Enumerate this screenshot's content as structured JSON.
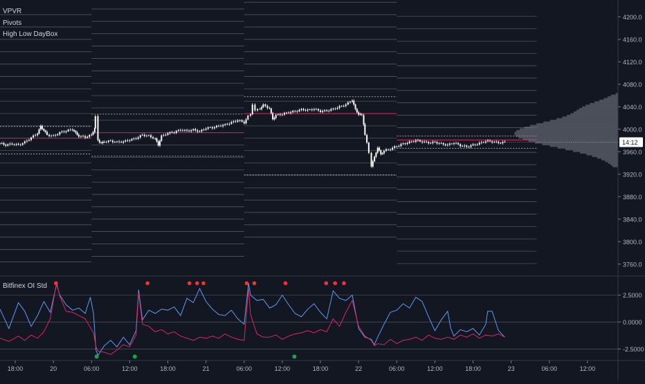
{
  "legend": {
    "vpvr": "VPVR",
    "pivots": "Pivots",
    "daybox": "High Low DayBox",
    "oi_pane": "Bitfinex OI Std"
  },
  "price_badge": "14:12",
  "colors": {
    "background": "#131722",
    "candle": "#ffffff",
    "pivot_line": "#5d606b",
    "day_box": "#a3a6af",
    "poc_line": "#e0245e",
    "volume_profile": "#787b86",
    "oi_blue": "#5b9cf6",
    "oi_red": "#e0245e",
    "marker_red": "#ff2d2d",
    "marker_green": "#14a83e"
  },
  "chart_data": [
    {
      "type": "candlestick",
      "pane": "price",
      "ylim": [
        3740,
        4230
      ],
      "y_ticks": [
        "4200.0",
        "4160.0",
        "4120.0",
        "4080.0",
        "4040.0",
        "4000.0",
        "3960.0",
        "3920.0",
        "3880.0",
        "3840.0",
        "3800.0",
        "3760.0"
      ],
      "y_tick_values": [
        4200,
        4160,
        4120,
        4080,
        4040,
        4000,
        3960,
        3920,
        3880,
        3840,
        3800,
        3760
      ],
      "x_ticks": [
        "18:00",
        "20",
        "06:00",
        "12:00",
        "18:00",
        "21",
        "06:00",
        "12:00",
        "18:00",
        "22",
        "06:00",
        "12:00",
        "18:00",
        "23",
        "06:00",
        "12:00"
      ],
      "x_tick_hours": [
        18,
        24,
        30,
        36,
        42,
        48,
        54,
        60,
        66,
        72,
        78,
        84,
        90,
        96,
        102,
        108
      ],
      "x_range_hours": [
        15.6,
        112.8
      ],
      "last_price": 3977,
      "price_path": [
        [
          15.6,
          3975
        ],
        [
          16.5,
          3972
        ],
        [
          17.5,
          3974
        ],
        [
          18.5,
          3972
        ],
        [
          19.5,
          3977
        ],
        [
          20.5,
          3985
        ],
        [
          21.5,
          3993
        ],
        [
          22,
          4005
        ],
        [
          22.5,
          3998
        ],
        [
          23,
          3990
        ],
        [
          24,
          3988
        ],
        [
          25,
          3994
        ],
        [
          26,
          3997
        ],
        [
          27,
          4000
        ],
        [
          27.5,
          3993
        ],
        [
          28,
          3988
        ],
        [
          29,
          3986
        ],
        [
          30,
          3990
        ],
        [
          30.5,
          4002
        ],
        [
          30.6,
          4022
        ],
        [
          31,
          3981
        ],
        [
          31.5,
          3975
        ],
        [
          32,
          3978
        ],
        [
          33,
          3979
        ],
        [
          34,
          3977
        ],
        [
          35,
          3978
        ],
        [
          36,
          3981
        ],
        [
          37,
          3984
        ],
        [
          38,
          3990
        ],
        [
          39,
          3988
        ],
        [
          40,
          3983
        ],
        [
          40.5,
          3972
        ],
        [
          41,
          3988
        ],
        [
          42,
          3993
        ],
        [
          43,
          3995
        ],
        [
          44,
          3999
        ],
        [
          45,
          3997
        ],
        [
          46,
          3999
        ],
        [
          47,
          3996
        ],
        [
          48,
          4002
        ],
        [
          49,
          4003
        ],
        [
          50,
          4006
        ],
        [
          51,
          4008
        ],
        [
          52,
          4012
        ],
        [
          53,
          4016
        ],
        [
          54,
          4012
        ],
        [
          54.6,
          4023
        ],
        [
          55,
          4027
        ],
        [
          55.3,
          4045
        ],
        [
          55.7,
          4033
        ],
        [
          56.5,
          4037
        ],
        [
          57,
          4043
        ],
        [
          58,
          4037
        ],
        [
          58.5,
          4018
        ],
        [
          59,
          4025
        ],
        [
          60,
          4027
        ],
        [
          61,
          4030
        ],
        [
          62,
          4032
        ],
        [
          63,
          4035
        ],
        [
          64,
          4034
        ],
        [
          65,
          4036
        ],
        [
          66,
          4032
        ],
        [
          67,
          4033
        ],
        [
          68,
          4036
        ],
        [
          69,
          4040
        ],
        [
          70,
          4044
        ],
        [
          71,
          4052
        ],
        [
          71.5,
          4035
        ],
        [
          72,
          4027
        ],
        [
          72.5,
          4025
        ],
        [
          72.8,
          4010
        ],
        [
          73,
          3990
        ],
        [
          73.3,
          3975
        ],
        [
          73.6,
          3958
        ],
        [
          74,
          3935
        ],
        [
          74.5,
          3950
        ],
        [
          75,
          3968
        ],
        [
          75.5,
          3955
        ],
        [
          76,
          3962
        ],
        [
          77,
          3965
        ],
        [
          78,
          3970
        ],
        [
          79,
          3974
        ],
        [
          80,
          3977
        ],
        [
          81,
          3980
        ],
        [
          82,
          3978
        ],
        [
          83,
          3976
        ],
        [
          84,
          3977
        ],
        [
          85,
          3974
        ],
        [
          86,
          3972
        ],
        [
          87,
          3976
        ],
        [
          88,
          3971
        ],
        [
          89,
          3969
        ],
        [
          90,
          3972
        ],
        [
          91,
          3975
        ],
        [
          92,
          3979
        ],
        [
          93,
          3978
        ],
        [
          94,
          3976
        ],
        [
          95,
          3977
        ]
      ]
    },
    {
      "type": "line",
      "pane": "oscillator",
      "ylim": [
        -3.5,
        4.2
      ],
      "y_ticks": [
        "2.5000",
        "0.0000",
        "-2.5000"
      ],
      "y_tick_values": [
        2.5,
        0,
        -2.5
      ],
      "series": [
        {
          "color": "oi_blue",
          "values": [
            [
              15.6,
              1.2
            ],
            [
              17,
              -0.6
            ],
            [
              18.5,
              1.8
            ],
            [
              19.5,
              1.0
            ],
            [
              20.5,
              -0.4
            ],
            [
              21.5,
              0.6
            ],
            [
              22.5,
              1.9
            ],
            [
              23.5,
              0.9
            ],
            [
              24.5,
              3.5
            ],
            [
              25,
              2.5
            ],
            [
              26,
              1.6
            ],
            [
              27,
              1.1
            ],
            [
              28,
              1.3
            ],
            [
              29,
              0.8
            ],
            [
              29.8,
              2.3
            ],
            [
              30.3,
              0.8
            ],
            [
              30.7,
              -2.6
            ],
            [
              31,
              -3.1
            ],
            [
              32,
              -2.2
            ],
            [
              33,
              -1.7
            ],
            [
              34,
              -2.3
            ],
            [
              35,
              -1.4
            ],
            [
              36,
              -2.1
            ],
            [
              37,
              -0.8
            ],
            [
              37.4,
              3.0
            ],
            [
              38,
              0.2
            ],
            [
              39,
              1.1
            ],
            [
              40,
              0.8
            ],
            [
              41,
              1.2
            ],
            [
              42,
              1.1
            ],
            [
              43,
              1.4
            ],
            [
              44,
              0.6
            ],
            [
              45,
              2.2
            ],
            [
              46,
              1.8
            ],
            [
              47,
              3.1
            ],
            [
              48,
              1.9
            ],
            [
              49,
              1.2
            ],
            [
              50,
              0.7
            ],
            [
              51,
              0.6
            ],
            [
              52,
              1.1
            ],
            [
              53,
              0.3
            ],
            [
              54,
              -0.2
            ],
            [
              54.7,
              3.6
            ],
            [
              55,
              2.5
            ],
            [
              56,
              2.0
            ],
            [
              57,
              2.1
            ],
            [
              58,
              1.3
            ],
            [
              59,
              1.6
            ],
            [
              60,
              2.5
            ],
            [
              61,
              1.6
            ],
            [
              62,
              0.8
            ],
            [
              63,
              0.5
            ],
            [
              64,
              1.2
            ],
            [
              65,
              1.7
            ],
            [
              66,
              0.9
            ],
            [
              67,
              0.3
            ],
            [
              68,
              2.9
            ],
            [
              69,
              2.2
            ],
            [
              70,
              2.0
            ],
            [
              71,
              2.5
            ],
            [
              72,
              -0.6
            ],
            [
              73,
              -1.4
            ],
            [
              74,
              -1.6
            ],
            [
              74.5,
              -2.1
            ],
            [
              75,
              -1.4
            ],
            [
              76,
              -0.2
            ],
            [
              77,
              0.9
            ],
            [
              78,
              1.1
            ],
            [
              79,
              1.7
            ],
            [
              80,
              1.3
            ],
            [
              81,
              2.3
            ],
            [
              82,
              1.9
            ],
            [
              83,
              0.5
            ],
            [
              84,
              -0.8
            ],
            [
              85,
              0.2
            ],
            [
              86,
              1.0
            ],
            [
              86.5,
              -0.6
            ],
            [
              87,
              -1.3
            ],
            [
              88,
              -0.7
            ],
            [
              89,
              -0.9
            ],
            [
              90,
              -0.6
            ],
            [
              91,
              -1.2
            ],
            [
              92,
              -0.2
            ],
            [
              92.3,
              1.0
            ],
            [
              93,
              1.0
            ],
            [
              94,
              -0.8
            ],
            [
              95,
              -1.4
            ]
          ]
        },
        {
          "color": "oi_red",
          "values": [
            [
              15.6,
              -1.5
            ],
            [
              17,
              -1.8
            ],
            [
              18.5,
              -1.3
            ],
            [
              19.5,
              -1.7
            ],
            [
              20.5,
              -1.2
            ],
            [
              21.5,
              -1.5
            ],
            [
              22.5,
              -0.9
            ],
            [
              23.5,
              0.3
            ],
            [
              24.5,
              3.7
            ],
            [
              25,
              2.4
            ],
            [
              26,
              1.0
            ],
            [
              27,
              0.9
            ],
            [
              28,
              0.6
            ],
            [
              29,
              0.3
            ],
            [
              29.8,
              -0.5
            ],
            [
              30.3,
              -1.0
            ],
            [
              30.7,
              -2.3
            ],
            [
              31,
              -2.7
            ],
            [
              32,
              -2.8
            ],
            [
              33,
              -3.0
            ],
            [
              34,
              -2.6
            ],
            [
              35,
              -2.1
            ],
            [
              36,
              -2.3
            ],
            [
              37,
              -1.2
            ],
            [
              37.4,
              2.7
            ],
            [
              38,
              -0.2
            ],
            [
              39,
              -0.4
            ],
            [
              40,
              -0.9
            ],
            [
              41,
              -0.7
            ],
            [
              42,
              -1.1
            ],
            [
              43,
              -0.9
            ],
            [
              44,
              -1.3
            ],
            [
              45,
              -1.5
            ],
            [
              46,
              -1.7
            ],
            [
              47,
              -1.4
            ],
            [
              48,
              -1.5
            ],
            [
              49,
              -1.3
            ],
            [
              50,
              -1.5
            ],
            [
              51,
              -1.1
            ],
            [
              52,
              -1.4
            ],
            [
              53,
              -1.6
            ],
            [
              54,
              -1.7
            ],
            [
              54.7,
              3.1
            ],
            [
              55,
              0.7
            ],
            [
              56,
              -1.1
            ],
            [
              57,
              -1.4
            ],
            [
              58,
              -1.4
            ],
            [
              59,
              -1.2
            ],
            [
              60,
              -1.6
            ],
            [
              61,
              -1.3
            ],
            [
              62,
              -1.1
            ],
            [
              63,
              -1.0
            ],
            [
              64,
              -0.8
            ],
            [
              65,
              -1.0
            ],
            [
              66,
              -0.7
            ],
            [
              67,
              -0.9
            ],
            [
              68,
              0.3
            ],
            [
              69,
              -0.4
            ],
            [
              70,
              0.9
            ],
            [
              71,
              2.0
            ],
            [
              72,
              -0.4
            ],
            [
              73,
              -1.3
            ],
            [
              74,
              -1.7
            ],
            [
              74.5,
              -2.2
            ],
            [
              75,
              -2.0
            ],
            [
              76,
              -2.1
            ],
            [
              77,
              -1.6
            ],
            [
              78,
              -2.0
            ],
            [
              79,
              -1.7
            ],
            [
              80,
              -1.6
            ],
            [
              81,
              -1.4
            ],
            [
              82,
              -1.7
            ],
            [
              83,
              -1.2
            ],
            [
              84,
              -1.5
            ],
            [
              85,
              -1.6
            ],
            [
              86,
              -1.4
            ],
            [
              87,
              -1.6
            ],
            [
              88,
              -1.2
            ],
            [
              89,
              -1.4
            ],
            [
              90,
              -1.1
            ],
            [
              91,
              -1.5
            ],
            [
              92,
              -1.2
            ],
            [
              93,
              -1.3
            ],
            [
              94,
              -1.1
            ],
            [
              95,
              -1.4
            ]
          ]
        }
      ],
      "red_markers_x": [
        24.4,
        38.8,
        45.4,
        46.6,
        47.6,
        54.4,
        55.6,
        60.5,
        66.9,
        68.3,
        69.7
      ],
      "red_markers_y": 3.6,
      "green_markers_x": [
        30.8,
        36.8,
        61.9
      ],
      "green_markers_y": -3.2
    }
  ]
}
